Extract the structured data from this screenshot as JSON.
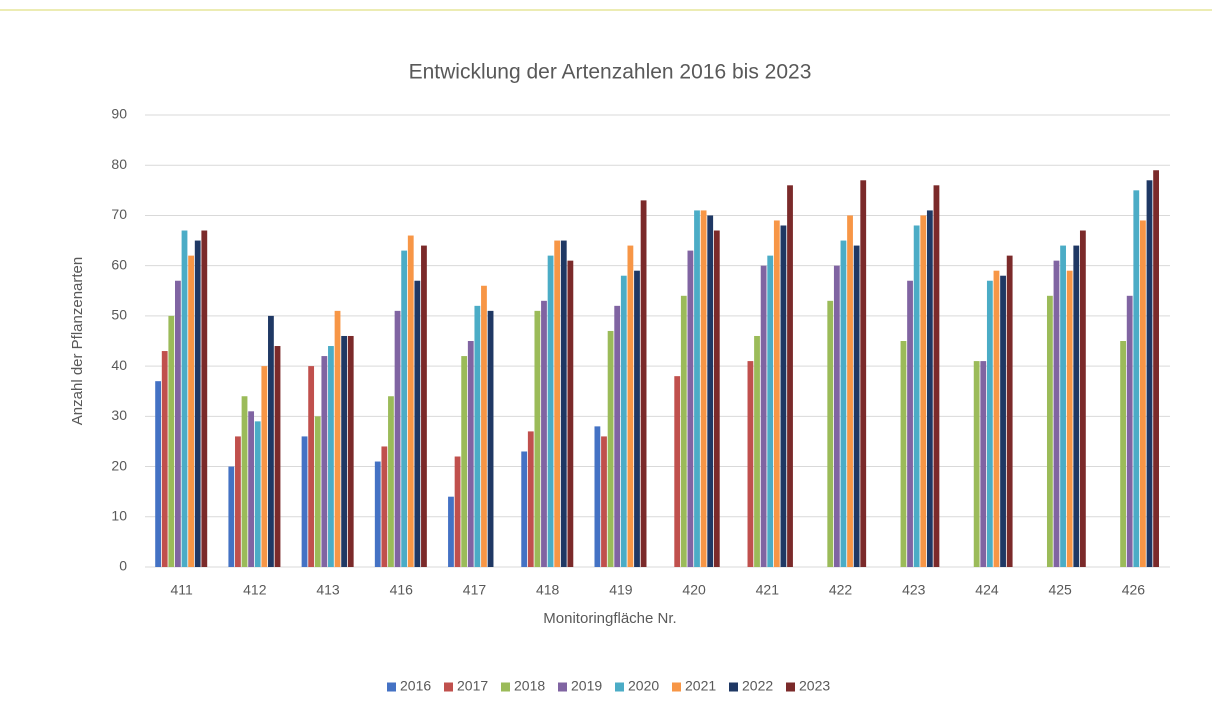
{
  "chart_data": {
    "type": "bar",
    "title": "Entwicklung der Artenzahlen 2016 bis 2023",
    "x_label": "Monitoringfläche Nr.",
    "y_label": "Anzahl der Pflanzenarten",
    "categories": [
      "411",
      "412",
      "413",
      "416",
      "417",
      "418",
      "419",
      "420",
      "421",
      "422",
      "423",
      "424",
      "425",
      "426"
    ],
    "series": [
      {
        "name": "2016",
        "color": "#4472c4",
        "values": [
          37,
          20,
          26,
          21,
          14,
          23,
          28,
          null,
          null,
          null,
          null,
          null,
          null,
          null
        ]
      },
      {
        "name": "2017",
        "color": "#c0504d",
        "values": [
          43,
          26,
          40,
          24,
          22,
          27,
          26,
          38,
          41,
          null,
          null,
          null,
          null,
          null
        ]
      },
      {
        "name": "2018",
        "color": "#9bbb59",
        "values": [
          50,
          34,
          30,
          34,
          42,
          51,
          47,
          54,
          46,
          53,
          45,
          41,
          54,
          45
        ]
      },
      {
        "name": "2019",
        "color": "#8064a2",
        "values": [
          57,
          31,
          42,
          51,
          45,
          53,
          52,
          63,
          60,
          60,
          57,
          41,
          61,
          54
        ]
      },
      {
        "name": "2020",
        "color": "#4bacc6",
        "values": [
          67,
          29,
          44,
          63,
          52,
          62,
          58,
          71,
          62,
          65,
          68,
          57,
          64,
          75
        ]
      },
      {
        "name": "2021",
        "color": "#f79646",
        "values": [
          62,
          40,
          51,
          66,
          56,
          65,
          64,
          71,
          69,
          70,
          70,
          59,
          59,
          69
        ]
      },
      {
        "name": "2022",
        "color": "#1f3864",
        "values": [
          65,
          50,
          46,
          57,
          51,
          65,
          59,
          70,
          68,
          64,
          71,
          58,
          64,
          77
        ]
      },
      {
        "name": "2023",
        "color": "#7b2a2a",
        "values": [
          67,
          44,
          46,
          64,
          null,
          61,
          73,
          67,
          76,
          77,
          76,
          62,
          67,
          79
        ]
      }
    ],
    "ylim": [
      0,
      90
    ],
    "yticks": [
      0,
      10,
      20,
      30,
      40,
      50,
      60,
      70,
      80,
      90
    ],
    "grid": true,
    "legend": "bottom"
  }
}
